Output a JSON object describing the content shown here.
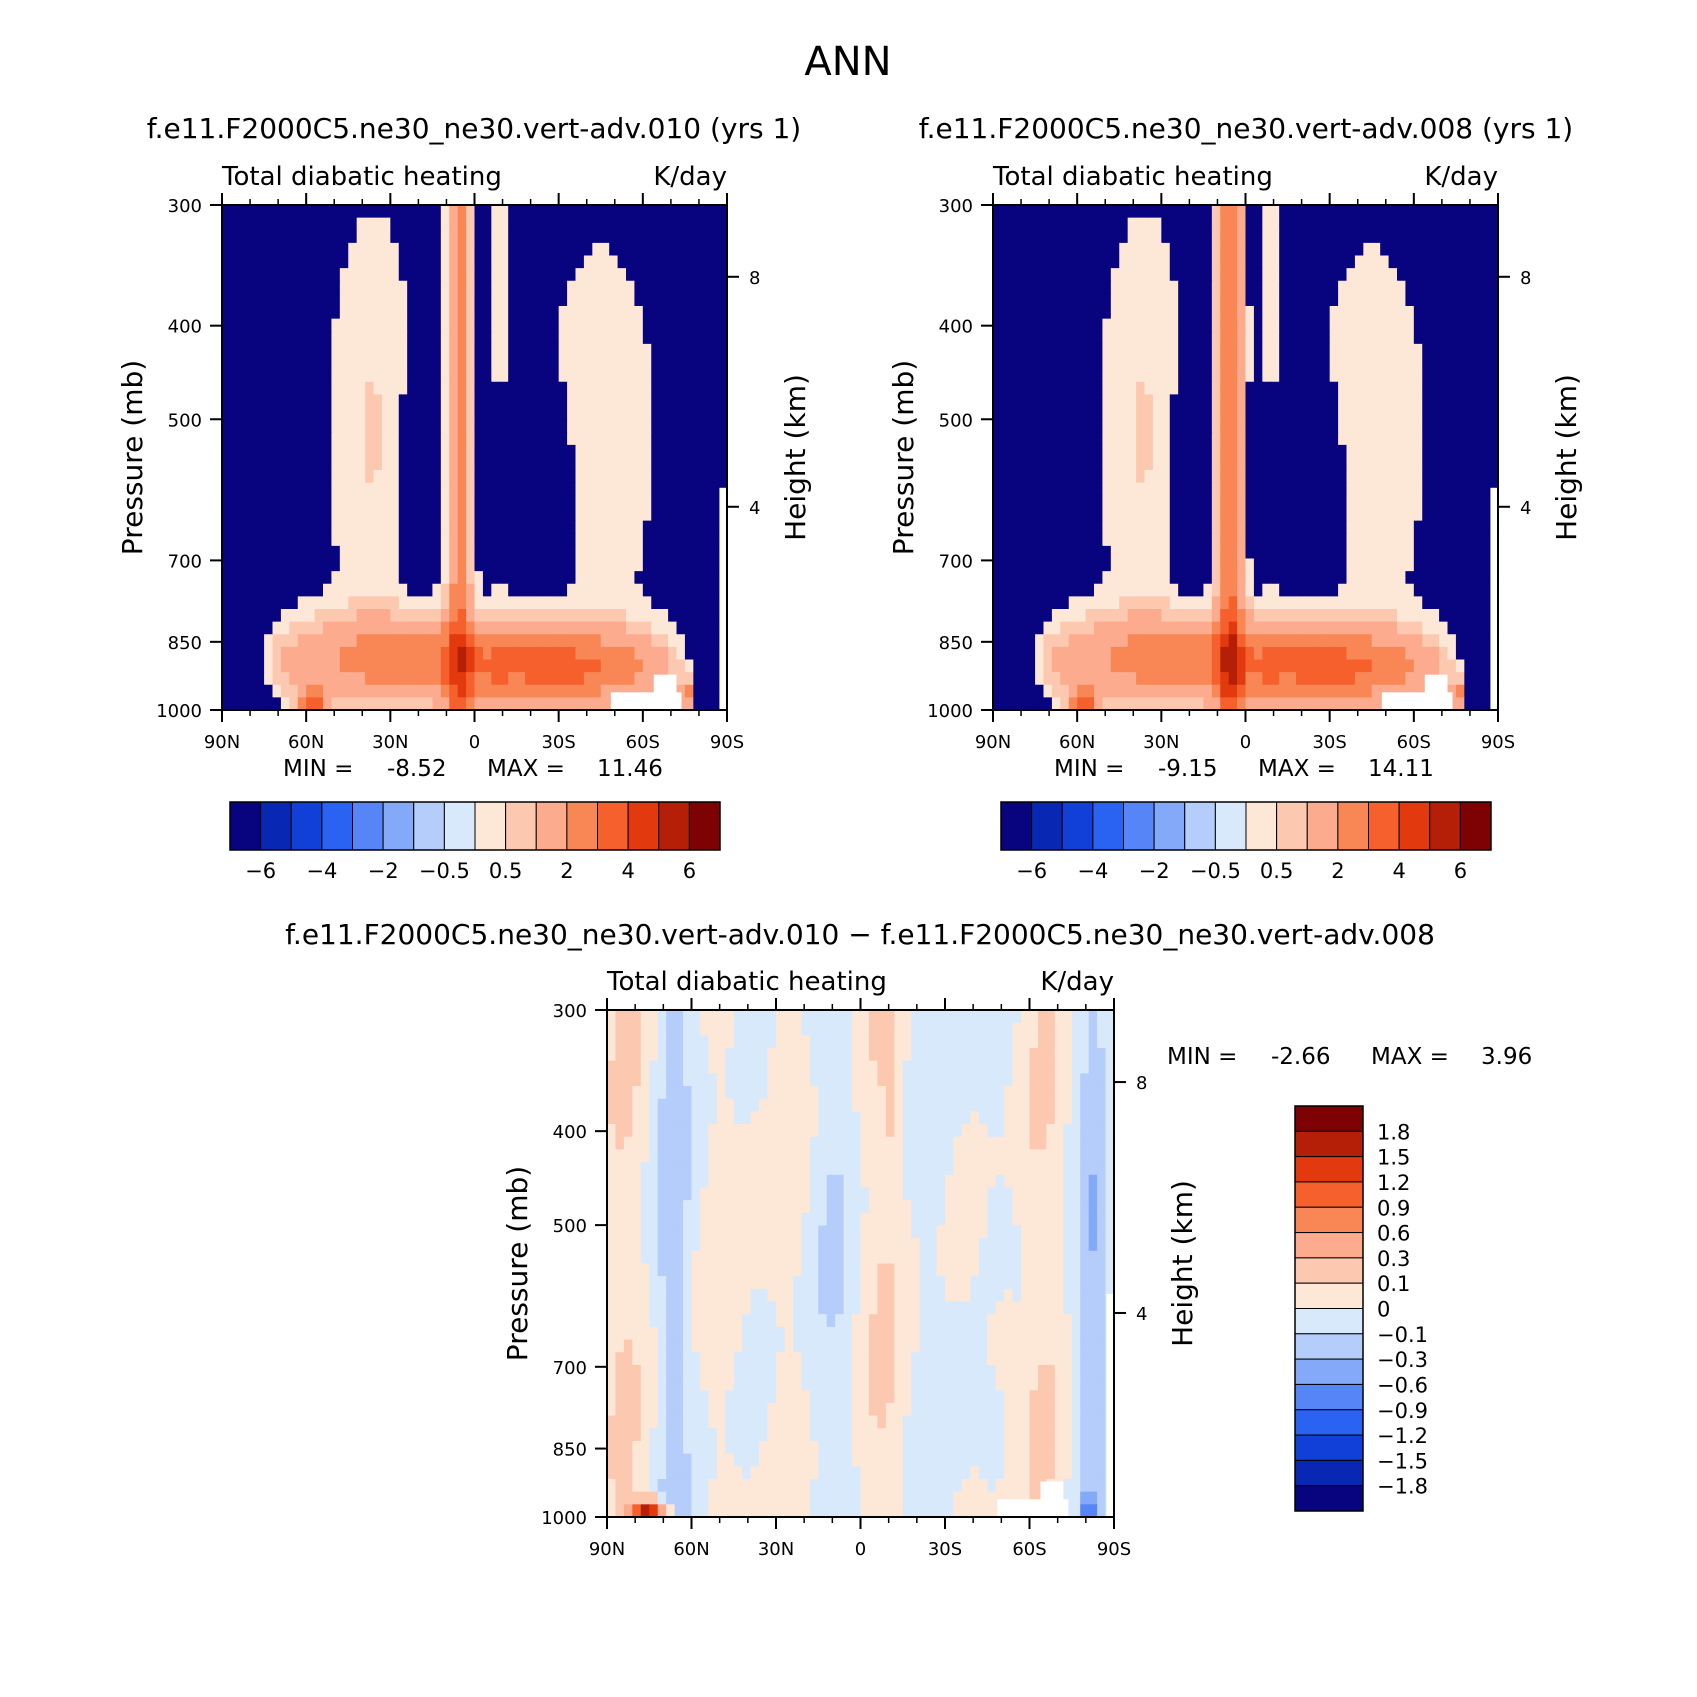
{
  "figure": {
    "title": "ANN"
  },
  "palette": {
    "neg": [
      "#08037e",
      "#0828b4",
      "#1040d8",
      "#2a62f2",
      "#5585f7",
      "#84a9f8",
      "#b5cdfb",
      "#d9e9fc"
    ],
    "pos": [
      "#fde8d8",
      "#fdc8b0",
      "#fcab8e",
      "#f98756",
      "#f6602d",
      "#e23a0e",
      "#b51f07",
      "#7e0204"
    ]
  },
  "chart_data": [
    {
      "type": "heatmap",
      "title": "f.e11.F2000C5.ne30_ne30.vert-adv.010 (yrs 1)",
      "left_string": "Total diabatic heating",
      "right_string": "K/day",
      "ylabel": "Pressure (mb)",
      "y2label": "Height (km)",
      "x_ticks": [
        "90N",
        "60N",
        "30N",
        "0",
        "30S",
        "60S",
        "90S"
      ],
      "x_values": [
        90,
        60,
        30,
        0,
        -30,
        -60,
        -90
      ],
      "xlim": [
        90,
        -90
      ],
      "y_ticks": [
        300,
        400,
        500,
        700,
        850,
        1000
      ],
      "ylim": [
        1000,
        300
      ],
      "y_scale": "log",
      "y2_ticks": [
        4,
        8
      ],
      "min": "-8.52",
      "max": "11.46",
      "stats_text": {
        "min_label": "MIN =",
        "max_label": "MAX ="
      },
      "colorbar": {
        "orientation": "horizontal",
        "levels": [
          -6,
          -5,
          -4,
          -3,
          -2,
          -1,
          -0.5,
          0,
          0.5,
          1,
          2,
          3,
          4,
          5,
          6
        ],
        "labels": [
          "−6",
          "−4",
          "−2",
          "−0.5",
          "0.5",
          "2",
          "4",
          "6"
        ],
        "label_boundary_index": [
          1,
          3,
          5,
          7,
          9,
          11,
          13,
          15
        ]
      }
    },
    {
      "type": "heatmap",
      "title": "f.e11.F2000C5.ne30_ne30.vert-adv.008 (yrs 1)",
      "left_string": "Total diabatic heating",
      "right_string": "K/day",
      "ylabel": "Pressure (mb)",
      "y2label": "Height (km)",
      "x_ticks": [
        "90N",
        "60N",
        "30N",
        "0",
        "30S",
        "60S",
        "90S"
      ],
      "x_values": [
        90,
        60,
        30,
        0,
        -30,
        -60,
        -90
      ],
      "xlim": [
        90,
        -90
      ],
      "y_ticks": [
        300,
        400,
        500,
        700,
        850,
        1000
      ],
      "ylim": [
        1000,
        300
      ],
      "y_scale": "log",
      "y2_ticks": [
        4,
        8
      ],
      "min": "-9.15",
      "max": "14.11",
      "stats_text": {
        "min_label": "MIN =",
        "max_label": "MAX ="
      },
      "colorbar": {
        "orientation": "horizontal",
        "levels": [
          -6,
          -5,
          -4,
          -3,
          -2,
          -1,
          -0.5,
          0,
          0.5,
          1,
          2,
          3,
          4,
          5,
          6
        ],
        "labels": [
          "−6",
          "−4",
          "−2",
          "−0.5",
          "0.5",
          "2",
          "4",
          "6"
        ],
        "label_boundary_index": [
          1,
          3,
          5,
          7,
          9,
          11,
          13,
          15
        ]
      }
    },
    {
      "type": "heatmap",
      "title": "f.e11.F2000C5.ne30_ne30.vert-adv.010 − f.e11.F2000C5.ne30_ne30.vert-adv.008",
      "left_string": "Total diabatic heating",
      "right_string": "K/day",
      "ylabel": "Pressure (mb)",
      "y2label": "Height (km)",
      "x_ticks": [
        "90N",
        "60N",
        "30N",
        "0",
        "30S",
        "60S",
        "90S"
      ],
      "x_values": [
        90,
        60,
        30,
        0,
        -30,
        -60,
        -90
      ],
      "xlim": [
        90,
        -90
      ],
      "y_ticks": [
        300,
        400,
        500,
        700,
        850,
        1000
      ],
      "ylim": [
        1000,
        300
      ],
      "y_scale": "log",
      "y2_ticks": [
        4,
        8
      ],
      "min": "-2.66",
      "max": "3.96",
      "stats_text": {
        "min_label": "MIN =",
        "max_label": "MAX ="
      },
      "colorbar": {
        "orientation": "vertical",
        "levels": [
          1.8,
          1.5,
          1.2,
          0.9,
          0.6,
          0.3,
          0.1,
          0,
          -0.1,
          -0.3,
          -0.6,
          -0.9,
          -1.2,
          -1.5,
          -1.8
        ],
        "labels": [
          "1.8",
          "1.5",
          "1.2",
          "0.9",
          "0.6",
          "0.3",
          "0.1",
          "0",
          "−0.1",
          "−0.3",
          "−0.6",
          "−0.9",
          "−1.2",
          "−1.5",
          "−1.8"
        ]
      }
    }
  ]
}
